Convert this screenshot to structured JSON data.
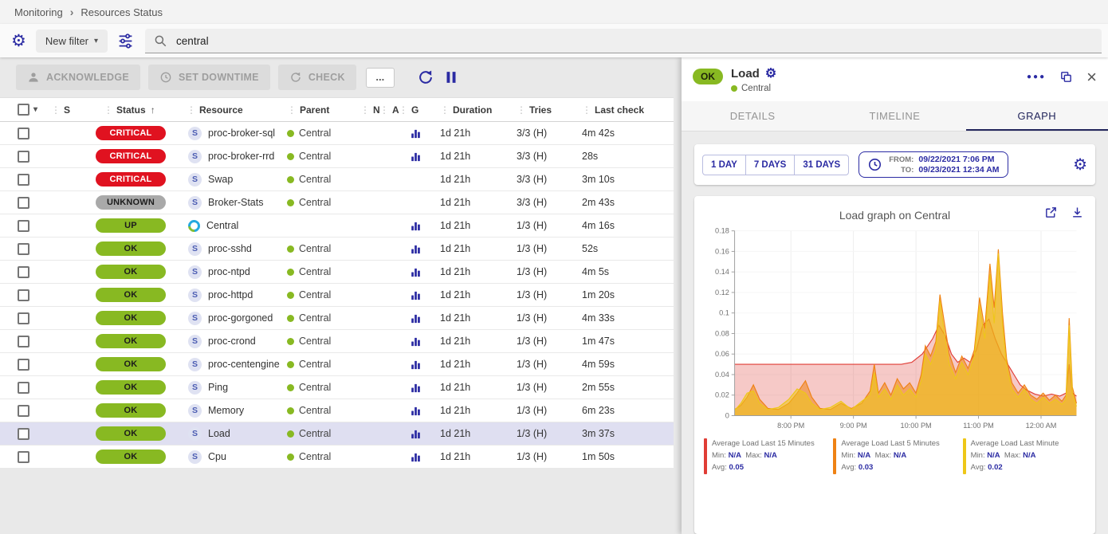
{
  "colors": {
    "accent": "#2b2ba3",
    "navy": "#23265c",
    "ok": "#88b922",
    "up": "#88b922",
    "critical": "#e01220",
    "unknown": "#a9a9a9",
    "selected_row": "#dfdff1"
  },
  "icons": {
    "gear": "⚙",
    "caret_down": "▾",
    "drag": "⋮",
    "sort_asc": "↑",
    "chevron": "›",
    "close": "×",
    "more_h": "●●●",
    "ellipsis": "..."
  },
  "breadcrumb": {
    "items": [
      "Monitoring",
      "Resources Status"
    ]
  },
  "filter": {
    "new_filter_label": "New filter",
    "search_value": "central"
  },
  "toolbar": {
    "acknowledge_label": "ACKNOWLEDGE",
    "set_downtime_label": "SET DOWNTIME",
    "check_label": "CHECK"
  },
  "table": {
    "headers": {
      "s": "S",
      "status": "Status",
      "resource": "Resource",
      "parent": "Parent",
      "n": "N",
      "a": "A",
      "g": "G",
      "duration": "Duration",
      "tries": "Tries",
      "last_check": "Last check"
    },
    "rows": [
      {
        "status": "CRITICAL",
        "severity": "critical",
        "resource": "proc-broker-sql",
        "resource_type": "service",
        "parent": "Central",
        "graph": true,
        "duration": "1d 21h",
        "tries": "3/3 (H)",
        "last_check": "4m 42s",
        "selected": false
      },
      {
        "status": "CRITICAL",
        "severity": "critical",
        "resource": "proc-broker-rrd",
        "resource_type": "service",
        "parent": "Central",
        "graph": true,
        "duration": "1d 21h",
        "tries": "3/3 (H)",
        "last_check": "28s",
        "selected": false
      },
      {
        "status": "CRITICAL",
        "severity": "critical",
        "resource": "Swap",
        "resource_type": "service",
        "parent": "Central",
        "graph": false,
        "duration": "1d 21h",
        "tries": "3/3 (H)",
        "last_check": "3m 10s",
        "selected": false
      },
      {
        "status": "UNKNOWN",
        "severity": "unknown",
        "resource": "Broker-Stats",
        "resource_type": "service",
        "parent": "Central",
        "graph": false,
        "duration": "1d 21h",
        "tries": "3/3 (H)",
        "last_check": "2m 43s",
        "selected": false
      },
      {
        "status": "UP",
        "severity": "up",
        "resource": "Central",
        "resource_type": "host",
        "parent": "",
        "graph": true,
        "duration": "1d 21h",
        "tries": "1/3 (H)",
        "last_check": "4m 16s",
        "selected": false
      },
      {
        "status": "OK",
        "severity": "ok",
        "resource": "proc-sshd",
        "resource_type": "service",
        "parent": "Central",
        "graph": true,
        "duration": "1d 21h",
        "tries": "1/3 (H)",
        "last_check": "52s",
        "selected": false
      },
      {
        "status": "OK",
        "severity": "ok",
        "resource": "proc-ntpd",
        "resource_type": "service",
        "parent": "Central",
        "graph": true,
        "duration": "1d 21h",
        "tries": "1/3 (H)",
        "last_check": "4m 5s",
        "selected": false
      },
      {
        "status": "OK",
        "severity": "ok",
        "resource": "proc-httpd",
        "resource_type": "service",
        "parent": "Central",
        "graph": true,
        "duration": "1d 21h",
        "tries": "1/3 (H)",
        "last_check": "1m 20s",
        "selected": false
      },
      {
        "status": "OK",
        "severity": "ok",
        "resource": "proc-gorgoned",
        "resource_type": "service",
        "parent": "Central",
        "graph": true,
        "duration": "1d 21h",
        "tries": "1/3 (H)",
        "last_check": "4m 33s",
        "selected": false
      },
      {
        "status": "OK",
        "severity": "ok",
        "resource": "proc-crond",
        "resource_type": "service",
        "parent": "Central",
        "graph": true,
        "duration": "1d 21h",
        "tries": "1/3 (H)",
        "last_check": "1m 47s",
        "selected": false
      },
      {
        "status": "OK",
        "severity": "ok",
        "resource": "proc-centengine",
        "resource_type": "service",
        "parent": "Central",
        "graph": true,
        "duration": "1d 21h",
        "tries": "1/3 (H)",
        "last_check": "4m 59s",
        "selected": false
      },
      {
        "status": "OK",
        "severity": "ok",
        "resource": "Ping",
        "resource_type": "service",
        "parent": "Central",
        "graph": true,
        "duration": "1d 21h",
        "tries": "1/3 (H)",
        "last_check": "2m 55s",
        "selected": false
      },
      {
        "status": "OK",
        "severity": "ok",
        "resource": "Memory",
        "resource_type": "service",
        "parent": "Central",
        "graph": true,
        "duration": "1d 21h",
        "tries": "1/3 (H)",
        "last_check": "6m 23s",
        "selected": false
      },
      {
        "status": "OK",
        "severity": "ok",
        "resource": "Load",
        "resource_type": "service",
        "parent": "Central",
        "graph": true,
        "duration": "1d 21h",
        "tries": "1/3 (H)",
        "last_check": "3m 37s",
        "selected": true
      },
      {
        "status": "OK",
        "severity": "ok",
        "resource": "Cpu",
        "resource_type": "service",
        "parent": "Central",
        "graph": true,
        "duration": "1d 21h",
        "tries": "1/3 (H)",
        "last_check": "1m 50s",
        "selected": false
      }
    ]
  },
  "panel": {
    "status_chip": "OK",
    "title": "Load",
    "parent": "Central",
    "tabs": [
      {
        "label": "DETAILS",
        "active": false
      },
      {
        "label": "TIMELINE",
        "active": false
      },
      {
        "label": "GRAPH",
        "active": true
      }
    ],
    "time_buttons": [
      "1 DAY",
      "7 DAYS",
      "31 DAYS"
    ],
    "from_label": "FROM:",
    "from_value": "09/22/2021 7:06 PM",
    "to_label": "TO:",
    "to_value": "09/23/2021 12:34 AM",
    "graph_title": "Load graph on Central",
    "legend_labels": {
      "min": "Min:",
      "max": "Max:",
      "avg": "Avg:"
    },
    "legend": [
      {
        "name": "Average Load Last 15 Minutes",
        "color": "#e03d36",
        "min": "N/A",
        "max": "N/A",
        "avg": "0.05"
      },
      {
        "name": "Average Load Last 5 Minutes",
        "color": "#ef8214",
        "min": "N/A",
        "max": "N/A",
        "avg": "0.03"
      },
      {
        "name": "Average Load Last Minute",
        "color": "#eec718",
        "min": "N/A",
        "max": "N/A",
        "avg": "0.02"
      }
    ]
  },
  "chart_data": {
    "type": "area",
    "title": "Load graph on Central",
    "xlabel": "",
    "ylabel": "",
    "x_unit": "minutes since 7:06 PM",
    "x_range": [
      0,
      328
    ],
    "ylim": [
      0,
      0.18
    ],
    "y_ticks": [
      0,
      0.02,
      0.04,
      0.06,
      0.08,
      0.1,
      0.12,
      0.14,
      0.16,
      0.18
    ],
    "x_ticks": [
      {
        "pos": 54,
        "label": "8:00 PM"
      },
      {
        "pos": 114,
        "label": "9:00 PM"
      },
      {
        "pos": 174,
        "label": "10:00 PM"
      },
      {
        "pos": 234,
        "label": "11:00 PM"
      },
      {
        "pos": 294,
        "label": "12:00 AM"
      }
    ],
    "grid": true,
    "legend_position": "bottom",
    "series": [
      {
        "name": "Average Load Last 15 Minutes",
        "color": "#e03d36",
        "fill_opacity": 0.28,
        "points": [
          [
            0,
            0.05
          ],
          [
            40,
            0.05
          ],
          [
            80,
            0.05
          ],
          [
            120,
            0.05
          ],
          [
            150,
            0.05
          ],
          [
            160,
            0.05
          ],
          [
            170,
            0.052
          ],
          [
            180,
            0.06
          ],
          [
            190,
            0.075
          ],
          [
            196,
            0.088
          ],
          [
            202,
            0.078
          ],
          [
            208,
            0.06
          ],
          [
            214,
            0.052
          ],
          [
            220,
            0.056
          ],
          [
            226,
            0.052
          ],
          [
            232,
            0.064
          ],
          [
            238,
            0.088
          ],
          [
            244,
            0.094
          ],
          [
            250,
            0.075
          ],
          [
            256,
            0.06
          ],
          [
            262,
            0.05
          ],
          [
            268,
            0.04
          ],
          [
            274,
            0.03
          ],
          [
            280,
            0.025
          ],
          [
            288,
            0.021
          ],
          [
            296,
            0.019
          ],
          [
            304,
            0.021
          ],
          [
            312,
            0.019
          ],
          [
            318,
            0.022
          ],
          [
            321,
            0.05
          ],
          [
            324,
            0.022
          ],
          [
            328,
            0.019
          ]
        ]
      },
      {
        "name": "Average Load Last 5 Minutes",
        "color": "#ef8214",
        "fill_opacity": 0.55,
        "points": [
          [
            0,
            0.006
          ],
          [
            6,
            0.01
          ],
          [
            12,
            0.018
          ],
          [
            18,
            0.03
          ],
          [
            24,
            0.016
          ],
          [
            32,
            0.007
          ],
          [
            42,
            0.006
          ],
          [
            52,
            0.012
          ],
          [
            60,
            0.022
          ],
          [
            68,
            0.034
          ],
          [
            74,
            0.018
          ],
          [
            82,
            0.007
          ],
          [
            92,
            0.006
          ],
          [
            102,
            0.012
          ],
          [
            112,
            0.007
          ],
          [
            122,
            0.012
          ],
          [
            130,
            0.024
          ],
          [
            134,
            0.05
          ],
          [
            138,
            0.022
          ],
          [
            144,
            0.032
          ],
          [
            150,
            0.02
          ],
          [
            156,
            0.036
          ],
          [
            162,
            0.026
          ],
          [
            168,
            0.032
          ],
          [
            174,
            0.022
          ],
          [
            179,
            0.04
          ],
          [
            183,
            0.068
          ],
          [
            188,
            0.058
          ],
          [
            193,
            0.072
          ],
          [
            197,
            0.118
          ],
          [
            201,
            0.092
          ],
          [
            206,
            0.06
          ],
          [
            212,
            0.042
          ],
          [
            218,
            0.058
          ],
          [
            224,
            0.046
          ],
          [
            230,
            0.064
          ],
          [
            235,
            0.115
          ],
          [
            240,
            0.085
          ],
          [
            245,
            0.148
          ],
          [
            249,
            0.105
          ],
          [
            253,
            0.162
          ],
          [
            257,
            0.1
          ],
          [
            261,
            0.055
          ],
          [
            266,
            0.032
          ],
          [
            272,
            0.022
          ],
          [
            278,
            0.03
          ],
          [
            284,
            0.02
          ],
          [
            290,
            0.016
          ],
          [
            296,
            0.022
          ],
          [
            302,
            0.015
          ],
          [
            308,
            0.02
          ],
          [
            314,
            0.014
          ],
          [
            318,
            0.02
          ],
          [
            321,
            0.095
          ],
          [
            324,
            0.028
          ],
          [
            328,
            0.012
          ]
        ]
      },
      {
        "name": "Average Load Last Minute",
        "color": "#eec718",
        "fill_opacity": 0.55,
        "points": [
          [
            0,
            0.005
          ],
          [
            6,
            0.012
          ],
          [
            12,
            0.022
          ],
          [
            18,
            0.024
          ],
          [
            24,
            0.012
          ],
          [
            32,
            0.006
          ],
          [
            42,
            0.008
          ],
          [
            52,
            0.016
          ],
          [
            60,
            0.026
          ],
          [
            68,
            0.022
          ],
          [
            74,
            0.012
          ],
          [
            82,
            0.006
          ],
          [
            92,
            0.008
          ],
          [
            102,
            0.014
          ],
          [
            112,
            0.006
          ],
          [
            122,
            0.014
          ],
          [
            130,
            0.02
          ],
          [
            134,
            0.042
          ],
          [
            138,
            0.018
          ],
          [
            144,
            0.026
          ],
          [
            150,
            0.016
          ],
          [
            156,
            0.03
          ],
          [
            162,
            0.02
          ],
          [
            168,
            0.026
          ],
          [
            174,
            0.018
          ],
          [
            179,
            0.034
          ],
          [
            183,
            0.06
          ],
          [
            188,
            0.05
          ],
          [
            193,
            0.064
          ],
          [
            197,
            0.112
          ],
          [
            201,
            0.082
          ],
          [
            206,
            0.05
          ],
          [
            212,
            0.036
          ],
          [
            218,
            0.052
          ],
          [
            224,
            0.04
          ],
          [
            230,
            0.058
          ],
          [
            235,
            0.108
          ],
          [
            240,
            0.075
          ],
          [
            245,
            0.138
          ],
          [
            249,
            0.09
          ],
          [
            253,
            0.158
          ],
          [
            257,
            0.088
          ],
          [
            261,
            0.048
          ],
          [
            266,
            0.026
          ],
          [
            272,
            0.018
          ],
          [
            278,
            0.026
          ],
          [
            284,
            0.016
          ],
          [
            290,
            0.012
          ],
          [
            296,
            0.018
          ],
          [
            302,
            0.012
          ],
          [
            308,
            0.016
          ],
          [
            314,
            0.011
          ],
          [
            318,
            0.016
          ],
          [
            321,
            0.088
          ],
          [
            324,
            0.022
          ],
          [
            328,
            0.009
          ]
        ]
      }
    ]
  }
}
